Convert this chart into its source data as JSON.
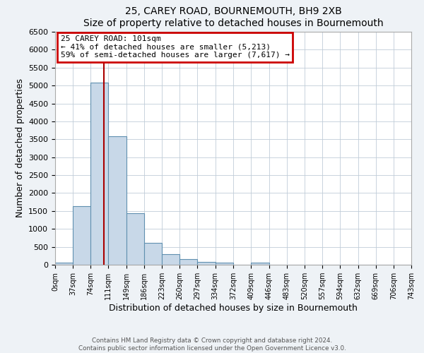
{
  "title": "25, CAREY ROAD, BOURNEMOUTH, BH9 2XB",
  "subtitle": "Size of property relative to detached houses in Bournemouth",
  "xlabel": "Distribution of detached houses by size in Bournemouth",
  "ylabel": "Number of detached properties",
  "bin_edges": [
    0,
    37,
    74,
    111,
    149,
    186,
    223,
    260,
    297,
    334,
    372,
    409,
    446,
    483,
    520,
    557,
    594,
    632,
    669,
    706,
    743
  ],
  "bar_heights": [
    60,
    1630,
    5080,
    3580,
    1430,
    615,
    305,
    150,
    80,
    50,
    0,
    50,
    0,
    0,
    0,
    0,
    0,
    0,
    0,
    0
  ],
  "bar_color": "#c8d8e8",
  "bar_edge_color": "#6090b0",
  "property_line_x": 101,
  "property_line_color": "#aa0000",
  "annotation_title": "25 CAREY ROAD: 101sqm",
  "annotation_line1": "← 41% of detached houses are smaller (5,213)",
  "annotation_line2": "59% of semi-detached houses are larger (7,617) →",
  "annotation_box_color": "#cc0000",
  "ylim": [
    0,
    6500
  ],
  "yticks": [
    0,
    500,
    1000,
    1500,
    2000,
    2500,
    3000,
    3500,
    4000,
    4500,
    5000,
    5500,
    6000,
    6500
  ],
  "tick_labels": [
    "0sqm",
    "37sqm",
    "74sqm",
    "111sqm",
    "149sqm",
    "186sqm",
    "223sqm",
    "260sqm",
    "297sqm",
    "334sqm",
    "372sqm",
    "409sqm",
    "446sqm",
    "483sqm",
    "520sqm",
    "557sqm",
    "594sqm",
    "632sqm",
    "669sqm",
    "706sqm",
    "743sqm"
  ],
  "footer1": "Contains HM Land Registry data © Crown copyright and database right 2024.",
  "footer2": "Contains public sector information licensed under the Open Government Licence v3.0.",
  "background_color": "#eef2f6",
  "plot_bg_color": "#ffffff",
  "grid_color": "#c0ccd8"
}
